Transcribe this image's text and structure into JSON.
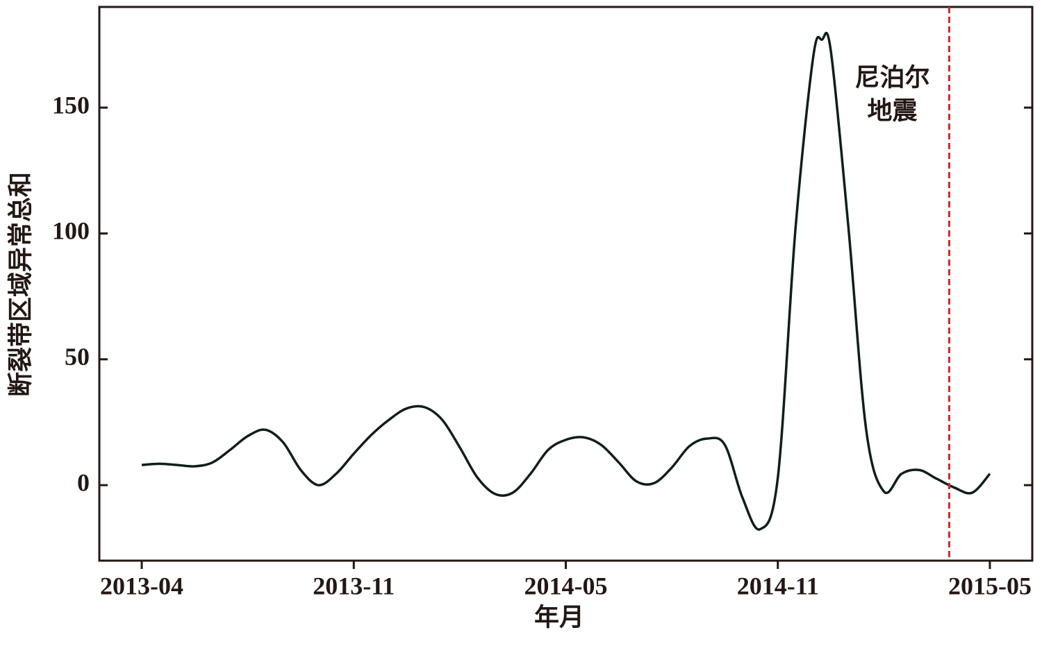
{
  "chart_data": {
    "type": "line",
    "x_label": "年月",
    "y_label": "断裂带区域异常总和",
    "x": [
      0,
      0.5,
      1,
      1.5,
      2,
      2.5,
      3,
      3.5,
      4,
      4.5,
      5,
      5.5,
      6,
      6.5,
      7,
      7.5,
      8,
      8.5,
      9,
      9.5,
      10,
      10.5,
      11,
      11.5,
      12,
      12.5,
      13,
      13.5,
      14,
      14.5,
      15,
      15.5,
      16,
      16.5,
      17,
      17.5,
      18,
      18.5,
      19,
      19.25,
      19.5,
      20,
      20.5,
      21,
      21.5,
      22,
      22.5,
      23,
      23.5,
      24
    ],
    "series": [
      {
        "color": "#0f1e1c",
        "values": [
          8,
          8.5,
          8,
          7.5,
          9,
          14,
          19.5,
          22,
          17,
          6,
          0,
          4.5,
          12.5,
          20,
          26,
          30.5,
          31,
          26,
          15,
          3,
          -3.5,
          -3,
          4.5,
          14,
          18,
          19,
          16,
          9,
          1.5,
          0.8,
          7,
          15.5,
          18.5,
          16,
          -5,
          -17.5,
          3,
          102,
          170,
          177,
          172.5,
          102,
          22,
          -2.5,
          4.5,
          6,
          2.5,
          -1,
          -3,
          4.5
        ]
      }
    ],
    "xlim": [
      -1.2,
      25.2
    ],
    "ylim": [
      -30,
      190
    ],
    "xticks": [
      {
        "value": 0,
        "label": "2013-04"
      },
      {
        "value": 6,
        "label": "2013-11"
      },
      {
        "value": 12,
        "label": "2014-05"
      },
      {
        "value": 18,
        "label": "2014-11"
      },
      {
        "value": 24,
        "label": "2015-05"
      }
    ],
    "yticks": [
      0,
      50,
      100,
      150
    ],
    "vline": {
      "x": 22.85,
      "color": "#d62728"
    },
    "annotation": {
      "lines": [
        "尼泊尔",
        "地震"
      ]
    }
  }
}
